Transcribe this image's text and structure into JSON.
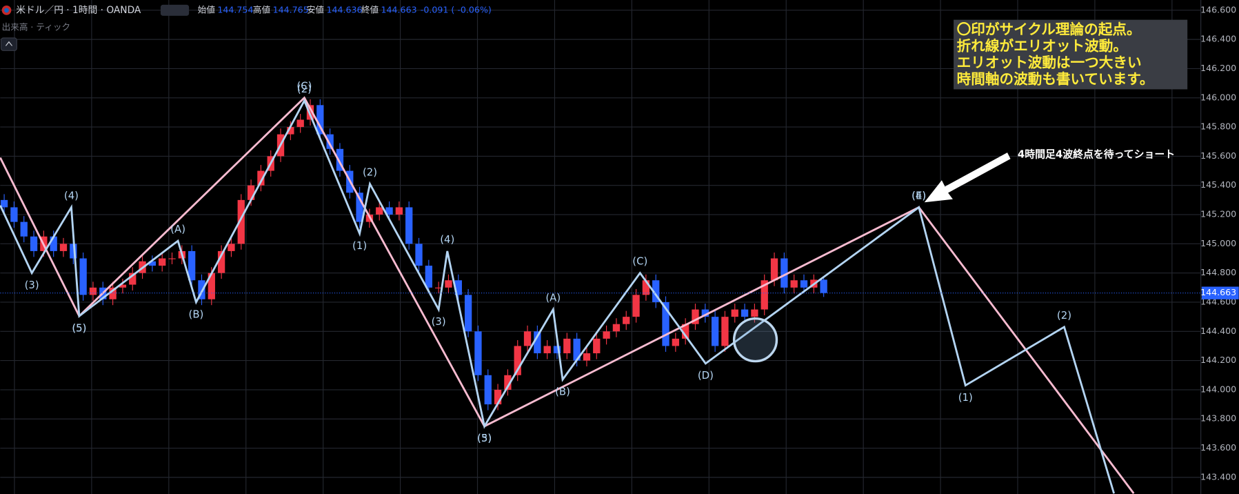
{
  "chart_data": {
    "type": "candlestick",
    "header": {
      "symbol": "米ドル／円 · 1時間 · OANDA",
      "fields": [
        {
          "label": "始値",
          "value": "144.754"
        },
        {
          "label": "高値",
          "value": "144.765"
        },
        {
          "label": "安値",
          "value": "144.636"
        },
        {
          "label": "終値",
          "value": "144.663"
        }
      ],
      "change": "-0.091 ( -0.06%)",
      "volume": "出来高 · ティック"
    },
    "up_color": "#f23645",
    "down_color": "#2962ff",
    "ylim": [
      143.286,
      146.67
    ],
    "yticks": [
      {
        "value": 146.6,
        "label": "146.600"
      },
      {
        "value": 146.4,
        "label": "146.400"
      },
      {
        "value": 146.2,
        "label": "146.200"
      },
      {
        "value": 146,
        "label": "146.000"
      },
      {
        "value": 145.8,
        "label": "145.800"
      },
      {
        "value": 145.6,
        "label": "145.600"
      },
      {
        "value": 145.4,
        "label": "145.400"
      },
      {
        "value": 145.2,
        "label": "145.200"
      },
      {
        "value": 145,
        "label": "145.000"
      },
      {
        "value": 144.8,
        "label": "144.800"
      },
      {
        "value": 144.6,
        "label": "144.600"
      },
      {
        "value": 144.4,
        "label": "144.400"
      },
      {
        "value": 144.2,
        "label": "144.200"
      },
      {
        "value": 144,
        "label": "144.000"
      },
      {
        "value": 143.8,
        "label": "143.800"
      },
      {
        "value": 143.6,
        "label": "143.600"
      },
      {
        "value": 143.4,
        "label": "143.400"
      }
    ],
    "grid": true,
    "last_price": {
      "value": 144.663,
      "label": "144.663"
    },
    "candles": [
      [
        145.3,
        145.34,
        145.21,
        145.25
      ],
      [
        145.25,
        145.29,
        145.11,
        145.15
      ],
      [
        145.15,
        145.19,
        145.01,
        145.05
      ],
      [
        145.05,
        145.09,
        144.91,
        144.95
      ],
      [
        144.95,
        145.09,
        144.91,
        145.05
      ],
      [
        145.05,
        145.09,
        144.91,
        144.95
      ],
      [
        144.95,
        145.04,
        144.91,
        145.0
      ],
      [
        145.0,
        145.04,
        144.86,
        144.9
      ],
      [
        144.9,
        144.94,
        144.61,
        144.65
      ],
      [
        144.65,
        144.74,
        144.61,
        144.7
      ],
      [
        144.7,
        144.74,
        144.58,
        144.62
      ],
      [
        144.62,
        144.74,
        144.58,
        144.7
      ],
      [
        144.7,
        144.76,
        144.66,
        144.72
      ],
      [
        144.72,
        144.84,
        144.68,
        144.8
      ],
      [
        144.8,
        144.92,
        144.76,
        144.88
      ],
      [
        144.88,
        144.92,
        144.81,
        144.85
      ],
      [
        144.85,
        144.94,
        144.81,
        144.9
      ],
      [
        144.9,
        144.94,
        144.86,
        144.9
      ],
      [
        144.9,
        144.99,
        144.86,
        144.95
      ],
      [
        144.95,
        144.99,
        144.71,
        144.75
      ],
      [
        144.75,
        144.79,
        144.58,
        144.62
      ],
      [
        144.62,
        144.84,
        144.58,
        144.8
      ],
      [
        144.8,
        144.99,
        144.76,
        144.95
      ],
      [
        144.95,
        145.04,
        144.91,
        145.0
      ],
      [
        145.0,
        145.34,
        144.96,
        145.3
      ],
      [
        145.3,
        145.44,
        145.26,
        145.4
      ],
      [
        145.4,
        145.54,
        145.36,
        145.5
      ],
      [
        145.5,
        145.64,
        145.46,
        145.6
      ],
      [
        145.6,
        145.79,
        145.56,
        145.75
      ],
      [
        145.75,
        145.84,
        145.71,
        145.8
      ],
      [
        145.8,
        145.89,
        145.76,
        145.85
      ],
      [
        145.85,
        145.99,
        145.81,
        145.95
      ],
      [
        145.95,
        145.99,
        145.71,
        145.75
      ],
      [
        145.75,
        145.79,
        145.61,
        145.65
      ],
      [
        145.65,
        145.69,
        145.46,
        145.5
      ],
      [
        145.5,
        145.54,
        145.31,
        145.35
      ],
      [
        145.35,
        145.39,
        145.11,
        145.15
      ],
      [
        145.15,
        145.24,
        145.11,
        145.2
      ],
      [
        145.2,
        145.29,
        145.16,
        145.25
      ],
      [
        145.25,
        145.29,
        145.16,
        145.2
      ],
      [
        145.2,
        145.29,
        145.16,
        145.25
      ],
      [
        145.25,
        145.29,
        144.96,
        145.0
      ],
      [
        145.0,
        145.04,
        144.81,
        144.85
      ],
      [
        144.85,
        144.89,
        144.66,
        144.7
      ],
      [
        144.7,
        144.74,
        144.66,
        144.7
      ],
      [
        144.7,
        144.79,
        144.66,
        144.75
      ],
      [
        144.75,
        144.79,
        144.61,
        144.65
      ],
      [
        144.65,
        144.69,
        144.36,
        144.4
      ],
      [
        144.4,
        144.44,
        144.06,
        144.1
      ],
      [
        144.1,
        144.14,
        143.86,
        143.9
      ],
      [
        143.9,
        144.04,
        143.86,
        144.0
      ],
      [
        144.0,
        144.14,
        143.96,
        144.1
      ],
      [
        144.1,
        144.34,
        144.06,
        144.3
      ],
      [
        144.3,
        144.44,
        144.26,
        144.4
      ],
      [
        144.4,
        144.44,
        144.21,
        144.25
      ],
      [
        144.25,
        144.34,
        144.21,
        144.3
      ],
      [
        144.3,
        144.34,
        144.21,
        144.25
      ],
      [
        144.25,
        144.39,
        144.21,
        144.35
      ],
      [
        144.35,
        144.39,
        144.16,
        144.2
      ],
      [
        144.2,
        144.29,
        144.16,
        144.25
      ],
      [
        144.25,
        144.39,
        144.21,
        144.35
      ],
      [
        144.35,
        144.44,
        144.31,
        144.4
      ],
      [
        144.4,
        144.49,
        144.36,
        144.45
      ],
      [
        144.45,
        144.54,
        144.41,
        144.5
      ],
      [
        144.5,
        144.69,
        144.46,
        144.65
      ],
      [
        144.65,
        144.79,
        144.61,
        144.75
      ],
      [
        144.75,
        144.79,
        144.56,
        144.6
      ],
      [
        144.6,
        144.64,
        144.26,
        144.3
      ],
      [
        144.3,
        144.39,
        144.26,
        144.35
      ],
      [
        144.35,
        144.49,
        144.31,
        144.45
      ],
      [
        144.45,
        144.59,
        144.41,
        144.55
      ],
      [
        144.55,
        144.59,
        144.46,
        144.5
      ],
      [
        144.5,
        144.54,
        144.26,
        144.3
      ],
      [
        144.3,
        144.54,
        144.26,
        144.5
      ],
      [
        144.5,
        144.59,
        144.46,
        144.55
      ],
      [
        144.55,
        144.59,
        144.46,
        144.5
      ],
      [
        144.5,
        144.59,
        144.46,
        144.55
      ],
      [
        144.55,
        144.79,
        144.51,
        144.75
      ],
      [
        144.75,
        144.94,
        144.71,
        144.9
      ],
      [
        144.9,
        144.94,
        144.66,
        144.7
      ],
      [
        144.7,
        144.79,
        144.66,
        144.75
      ],
      [
        144.75,
        144.79,
        144.66,
        144.7
      ],
      [
        144.7,
        144.79,
        144.66,
        144.754
      ],
      [
        144.754,
        144.765,
        144.636,
        144.663
      ]
    ],
    "waves": [
      {
        "color": "#f8bbd0",
        "x": [
          -0.4,
          7.6,
          30.4,
          48.64,
          92.64,
          114.4
        ],
        "values": [
          145.59,
          144.505,
          146.0,
          143.75,
          145.25,
          143.29
        ],
        "labels": [
          null,
          "(5)",
          "(C)",
          "(3)",
          "(4)",
          null
        ]
      },
      {
        "color": "#b3d4f2",
        "x": [
          -0.4,
          2.8,
          6.8,
          7.6,
          17.6,
          19.44,
          30.4,
          36,
          37.04,
          44,
          44.88,
          48.64,
          55.6,
          56.56,
          64.4,
          71.04,
          92.64,
          97.36,
          107.36,
          112.4
        ],
        "values": [
          145.263,
          144.8,
          145.25,
          144.505,
          145.02,
          144.6,
          145.98,
          145.07,
          145.41,
          144.55,
          144.95,
          143.75,
          144.55,
          144.07,
          144.8,
          144.18,
          145.25,
          144.03,
          144.43,
          143.29
        ],
        "labels": [
          null,
          "(3)",
          "(4)",
          "(5)",
          "(A)",
          "(B)",
          "(2)",
          "(1)",
          "(2)",
          "(3)",
          "(4)",
          "(5)",
          "(A)",
          "(B)",
          "(C)",
          "(D)",
          "(E)",
          "(1)",
          "(2)",
          null
        ]
      }
    ],
    "note": [
      "〇印がサイクル理論の起点。",
      "折れ線がエリオット波動。",
      "エリオット波動は一つ大きい",
      "時間軸の波動も書いています。"
    ],
    "callout": "4時間足4波終点を待ってショート"
  }
}
